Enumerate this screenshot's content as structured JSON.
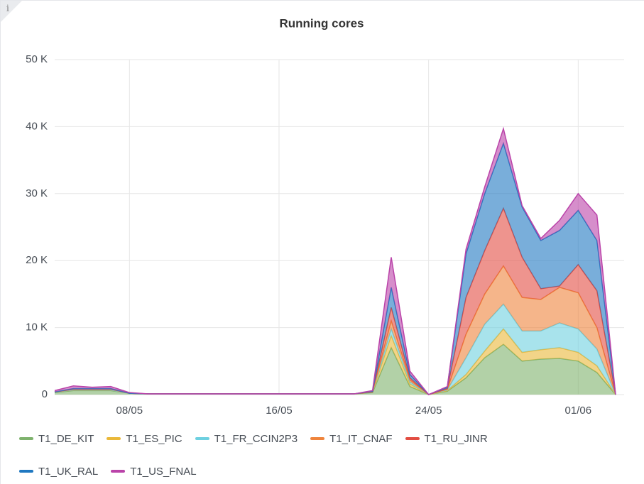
{
  "chart_data": {
    "type": "stacked-area",
    "title": "Running cores",
    "x": [
      "04/05",
      "05/05",
      "06/05",
      "07/05",
      "08/05",
      "09/05",
      "10/05",
      "11/05",
      "12/05",
      "13/05",
      "14/05",
      "15/05",
      "16/05",
      "17/05",
      "18/05",
      "19/05",
      "20/05",
      "21/05",
      "22/05",
      "23/05",
      "24/05",
      "25/05",
      "26/05",
      "27/05",
      "28/05",
      "29/05",
      "30/05",
      "31/05",
      "01/06",
      "02/06",
      "03/06"
    ],
    "xlim": [
      "04/05",
      "03/06"
    ],
    "xticks": [
      "08/05",
      "16/05",
      "24/05",
      "01/06"
    ],
    "ylim": [
      0,
      50000
    ],
    "yticks": [
      {
        "value": 0,
        "label": "0"
      },
      {
        "value": 10000,
        "label": "10 K"
      },
      {
        "value": 20000,
        "label": "20 K"
      },
      {
        "value": 30000,
        "label": "30 K"
      },
      {
        "value": 40000,
        "label": "40 K"
      },
      {
        "value": 50000,
        "label": "50 K"
      }
    ],
    "grid": true,
    "legend": "bottom",
    "series": [
      {
        "name": "T1_DE_KIT",
        "color": "#7eb26d",
        "values": [
          300,
          600,
          600,
          600,
          200,
          100,
          100,
          100,
          100,
          100,
          100,
          100,
          100,
          100,
          100,
          100,
          100,
          300,
          7000,
          1200,
          0,
          500,
          2500,
          5500,
          7500,
          5000,
          5300,
          5400,
          5000,
          3300,
          0
        ]
      },
      {
        "name": "T1_ES_PIC",
        "color": "#eab839",
        "values": [
          100,
          100,
          100,
          100,
          0,
          0,
          0,
          0,
          0,
          0,
          0,
          0,
          0,
          0,
          0,
          0,
          0,
          100,
          1800,
          400,
          0,
          100,
          500,
          1000,
          2300,
          1300,
          1400,
          1600,
          1300,
          1000,
          0
        ]
      },
      {
        "name": "T1_FR_CCIN2P3",
        "color": "#6ed0e0",
        "values": [
          0,
          0,
          0,
          0,
          0,
          0,
          0,
          0,
          0,
          0,
          0,
          0,
          0,
          0,
          0,
          0,
          0,
          0,
          1000,
          300,
          0,
          100,
          2500,
          4000,
          3700,
          3200,
          2800,
          3700,
          3500,
          2500,
          0
        ]
      },
      {
        "name": "T1_IT_CNAF",
        "color": "#ef843c",
        "values": [
          0,
          100,
          100,
          100,
          0,
          0,
          0,
          0,
          0,
          0,
          0,
          0,
          0,
          0,
          0,
          0,
          0,
          0,
          1200,
          300,
          0,
          100,
          3500,
          4500,
          5700,
          5000,
          4700,
          5300,
          5400,
          3200,
          0
        ]
      },
      {
        "name": "T1_RU_JINR",
        "color": "#e24d42",
        "values": [
          0,
          0,
          0,
          0,
          0,
          0,
          0,
          0,
          0,
          0,
          0,
          0,
          0,
          0,
          0,
          0,
          0,
          0,
          2000,
          300,
          0,
          100,
          5500,
          6500,
          8600,
          6000,
          1600,
          200,
          4200,
          5500,
          0
        ]
      },
      {
        "name": "T1_UK_RAL",
        "color": "#1f78c1",
        "values": [
          0,
          100,
          100,
          100,
          0,
          0,
          0,
          0,
          0,
          0,
          0,
          0,
          0,
          0,
          0,
          0,
          0,
          100,
          3000,
          500,
          0,
          200,
          6500,
          8500,
          9700,
          7500,
          7200,
          8300,
          8100,
          7500,
          0
        ]
      },
      {
        "name": "T1_US_FNAL",
        "color": "#ba43a9",
        "values": [
          200,
          400,
          200,
          300,
          100,
          0,
          0,
          0,
          0,
          0,
          0,
          0,
          0,
          0,
          0,
          0,
          0,
          100,
          4500,
          500,
          0,
          100,
          700,
          1000,
          2200,
          200,
          300,
          1500,
          2500,
          3800,
          0
        ]
      }
    ]
  }
}
